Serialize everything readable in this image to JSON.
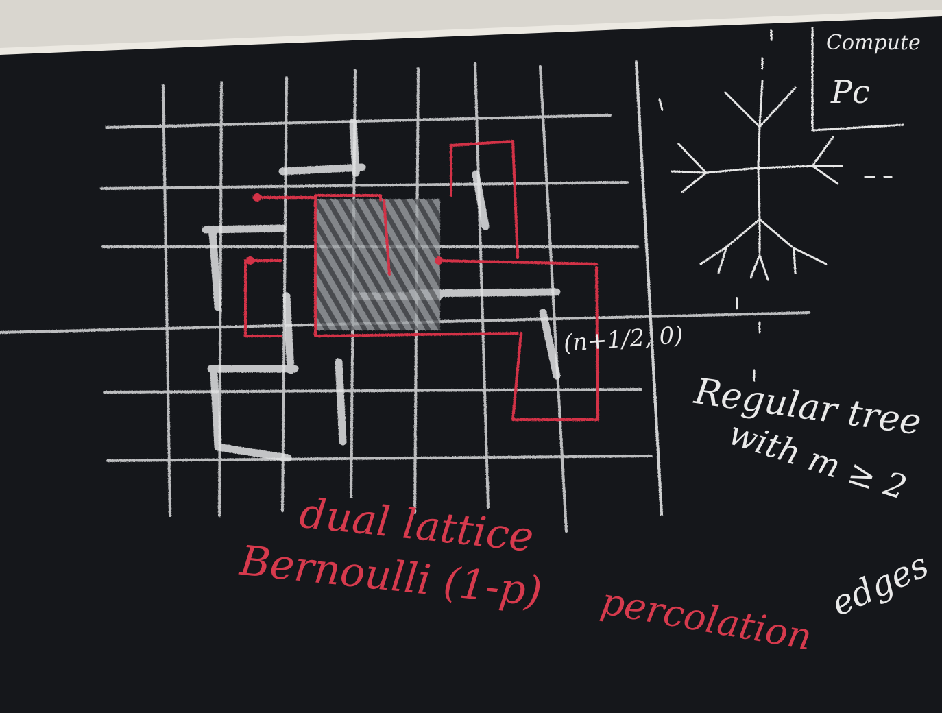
{
  "scene": {
    "description_kind": "chalkboard photo",
    "colors": {
      "board": "#16181c",
      "frame": "#e6e3dc",
      "chalk_white": "#e4e4e4",
      "chalk_red": "#d33346"
    }
  },
  "labels": {
    "compute": "Compute",
    "pc": "Pc",
    "coord": "(n+1/2, 0)",
    "regular_tree": "Regular tree",
    "with_m": "with m ≥ 2",
    "edges": "edges",
    "dual_lattice": "dual lattice",
    "bernoulli": "Bernoulli (1-p)",
    "percolation": "percolation"
  }
}
